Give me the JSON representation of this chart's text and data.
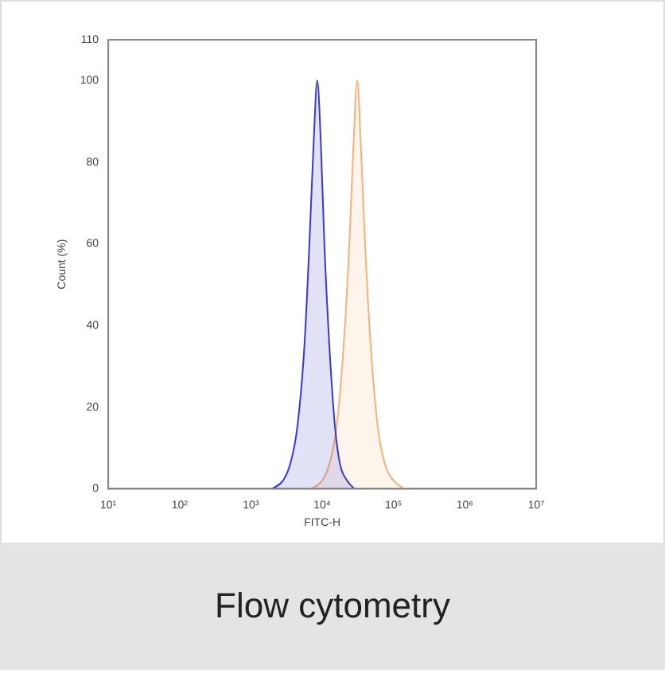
{
  "chart_data": {
    "type": "area",
    "xlabel": "FITC-H",
    "ylabel": "Count (%)",
    "log": "x",
    "grid": false,
    "legend": false,
    "marker": "none",
    "xlim": [
      10,
      10000000
    ],
    "xticks": [
      {
        "value": 10,
        "label": "10¹"
      },
      {
        "value": 100,
        "label": "10²"
      },
      {
        "value": 1000,
        "label": "10³"
      },
      {
        "value": 10000,
        "label": "10⁴"
      },
      {
        "value": 100000,
        "label": "10⁵"
      },
      {
        "value": 1000000,
        "label": "10⁶"
      },
      {
        "value": 10000000,
        "label": "10⁷"
      }
    ],
    "ylim": [
      0,
      110
    ],
    "yticks": [
      0,
      20,
      40,
      60,
      80,
      100,
      110
    ],
    "series": [
      {
        "color": "#3a3ac8",
        "x": [
          1995,
          2818,
          3548,
          4467,
          5623,
          6607,
          7586,
          8511,
          9550,
          10715,
          12589,
          15136,
          17783,
          22387,
          28184
        ],
        "values": [
          0,
          2,
          6,
          15,
          35,
          60,
          85,
          100,
          85,
          60,
          35,
          15,
          6,
          2,
          0
        ]
      },
      {
        "color": "#f2b27c",
        "x": [
          7079,
          10000,
          12589,
          15849,
          19953,
          23988,
          27542,
          30903,
          34674,
          39811,
          47863,
          60256,
          75858,
          100000,
          141254
        ],
        "values": [
          0,
          2,
          6,
          15,
          35,
          60,
          85,
          100,
          85,
          60,
          35,
          15,
          6,
          2,
          0
        ]
      }
    ],
    "annotations": [
      "Flow cytometry"
    ]
  }
}
